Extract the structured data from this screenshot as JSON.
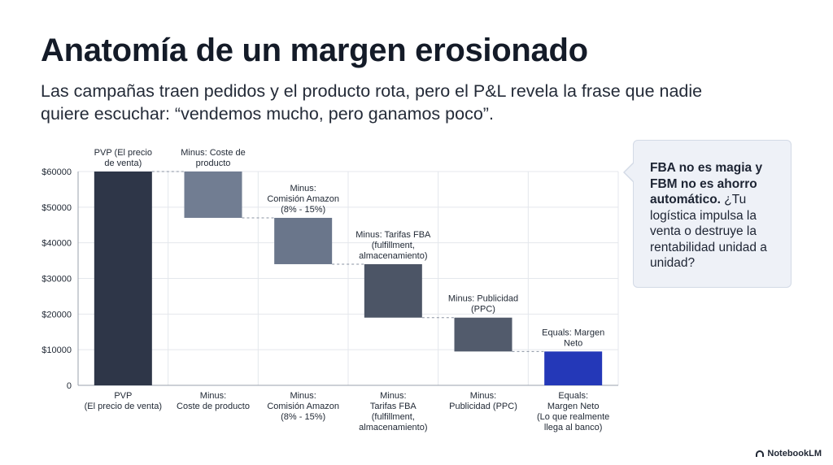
{
  "header": {
    "title": "Anatomía de un margen erosionado",
    "subtitle": "Las campañas traen pedidos y el producto rota, pero el P&L revela la frase que nadie quiere escuchar: “vendemos mucho, pero ganamos poco”."
  },
  "chart_data": {
    "type": "bar",
    "subtype": "waterfall",
    "y_ticks": [
      "0",
      "$10000",
      "$20000",
      "$30000",
      "$40000",
      "$50000",
      "$60000"
    ],
    "ylim": [
      0,
      60000
    ],
    "grid": true,
    "steps": [
      {
        "kind": "total",
        "start": 0,
        "end": 60000,
        "color": "#2e3648",
        "top_label": [
          "PVP (El precio",
          "de venta)"
        ],
        "category": [
          "PVP",
          "(El precio de venta)"
        ]
      },
      {
        "kind": "decrease",
        "start": 60000,
        "end": 47000,
        "color": "#717d92",
        "top_label": [
          "Minus: Coste de",
          "producto"
        ],
        "category": [
          "Minus:",
          "Coste de producto"
        ]
      },
      {
        "kind": "decrease",
        "start": 47000,
        "end": 34000,
        "color": "#6a768b",
        "top_label": [
          "Minus:",
          "Comisión Amazon",
          "(8% - 15%)"
        ],
        "category": [
          "Minus:",
          "Comisión Amazon",
          "(8% - 15%)"
        ]
      },
      {
        "kind": "decrease",
        "start": 34000,
        "end": 19000,
        "color": "#4c5566",
        "top_label": [
          "Minus: Tarifas FBA",
          "(fulfillment,",
          "almacenamiento)"
        ],
        "category": [
          "Minus:",
          "Tarifas FBA",
          "(fulfillment,",
          "almacenamiento)"
        ]
      },
      {
        "kind": "decrease",
        "start": 19000,
        "end": 9500,
        "color": "#525b6c",
        "top_label": [
          "Minus: Publicidad",
          "(PPC)"
        ],
        "category": [
          "Minus:",
          "Publicidad (PPC)"
        ]
      },
      {
        "kind": "total",
        "start": 0,
        "end": 9500,
        "color": "#2438b8",
        "top_label": [
          "Equals: Margen",
          "Neto"
        ],
        "category": [
          "Equals:",
          "Margen Neto",
          "(Lo que realmente",
          "llega al banco)"
        ]
      }
    ]
  },
  "callout": {
    "bold_text": "FBA no es magia y FBM no es ahorro automático.",
    "text": " ¿Tu logística impulsa la venta o destruye la rentabilidad unidad a unidad?"
  },
  "branding": {
    "label": "NotebookLM",
    "icon": "notebooklm-logo-icon"
  }
}
